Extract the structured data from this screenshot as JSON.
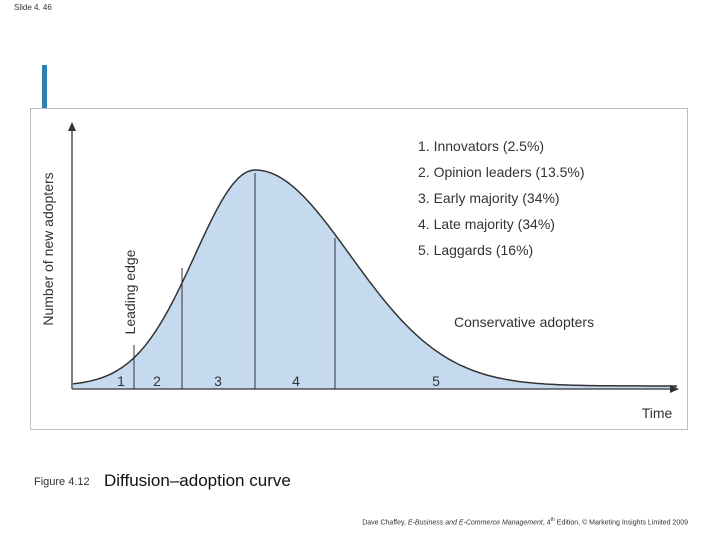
{
  "slide": {
    "number_label": "Slide 4. 46"
  },
  "figure": {
    "y_axis_label": "Number of new adopters",
    "x_axis_label": "Time",
    "leading_edge_label": "Leading edge",
    "conservative_label": "Conservative adopters",
    "legend": [
      "1. Innovators (2.5%)",
      "2. Opinion leaders (13.5%)",
      "3. Early majority (34%)",
      "4. Late majority (34%)",
      "5. Laggards (16%)"
    ],
    "segments": [
      "1",
      "2",
      "3",
      "4",
      "5"
    ],
    "colors": {
      "fill": "#c5d9ef",
      "line": "#333333",
      "accent": "#2f7fb0"
    }
  },
  "caption": {
    "label": "Figure 4.12",
    "title": "Diffusion–adoption curve"
  },
  "footer": {
    "author": "Dave Chaffey, ",
    "book": "E-Business and E-Commerce Management",
    "edition_pre": ", 4",
    "edition_sup": "th",
    "edition_post": " Edition, © Marketing Insights Limited 2009"
  }
}
